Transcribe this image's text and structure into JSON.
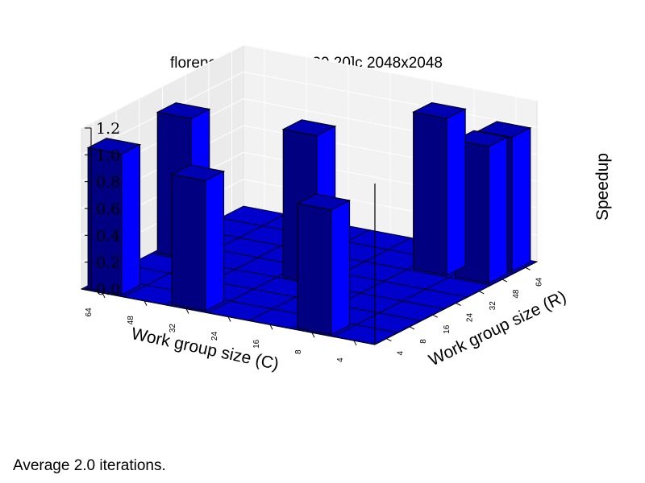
{
  "chart_data": {
    "type": "bar3d",
    "title": "florence CPU [20,20,20,20]c 2048x2048",
    "xlabel": "Work group size (C)",
    "ylabel": "Work group size (R)",
    "zlabel": "Speedup",
    "x_ticks": [
      "4",
      "8",
      "16",
      "24",
      "32",
      "48",
      "64"
    ],
    "y_ticks": [
      "4",
      "8",
      "16",
      "24",
      "32",
      "48",
      "64"
    ],
    "z_ticks": [
      "0.0",
      "0.2",
      "0.4",
      "0.6",
      "0.8",
      "1.0",
      "1.2"
    ],
    "zlim": [
      0,
      1.2
    ],
    "grid": true,
    "bar_color": "#0000ff",
    "bars": [
      {
        "c": "64",
        "r": "4",
        "value": 1.05
      },
      {
        "c": "32",
        "r": "4",
        "value": 0.97
      },
      {
        "c": "8",
        "r": "4",
        "value": 0.93
      },
      {
        "c": "64",
        "r": "24",
        "value": 1.05
      },
      {
        "c": "24",
        "r": "24",
        "value": 1.1
      },
      {
        "c": "8",
        "r": "48",
        "value": 1.17
      },
      {
        "c": "4",
        "r": "64",
        "value": 1.0
      },
      {
        "c": "4",
        "r": "48",
        "value": 1.02
      }
    ]
  },
  "footnote": "Average 2.0 iterations."
}
